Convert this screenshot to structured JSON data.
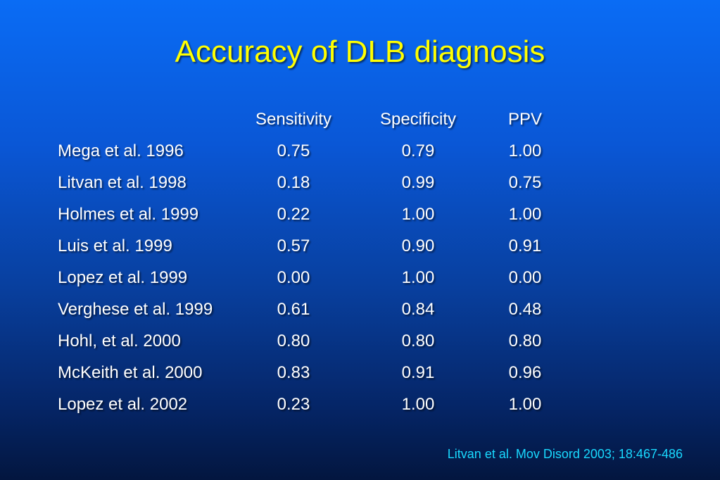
{
  "slide": {
    "title": "Accuracy of DLB diagnosis",
    "citation": "Litvan et al. Mov Disord 2003; 18:467-486"
  },
  "table": {
    "headers": [
      "Sensitivity",
      "Specificity",
      "PPV"
    ],
    "rows": [
      {
        "study": "Mega et al. 1996",
        "sensitivity": "0.75",
        "specificity": "0.79",
        "ppv": "1.00"
      },
      {
        "study": "Litvan et al. 1998",
        "sensitivity": "0.18",
        "specificity": "0.99",
        "ppv": "0.75"
      },
      {
        "study": "Holmes et al. 1999",
        "sensitivity": "0.22",
        "specificity": "1.00",
        "ppv": "1.00"
      },
      {
        "study": "Luis et al. 1999",
        "sensitivity": "0.57",
        "specificity": "0.90",
        "ppv": "0.91"
      },
      {
        "study": "Lopez et al. 1999",
        "sensitivity": "0.00",
        "specificity": "1.00",
        "ppv": "0.00"
      },
      {
        "study": "Verghese et al. 1999",
        "sensitivity": "0.61",
        "specificity": "0.84",
        "ppv": "0.48"
      },
      {
        "study": "Hohl, et al. 2000",
        "sensitivity": "0.80",
        "specificity": "0.80",
        "ppv": "0.80"
      },
      {
        "study": "McKeith et al. 2000",
        "sensitivity": "0.83",
        "specificity": "0.91",
        "ppv": "0.96"
      },
      {
        "study": "Lopez et al. 2002",
        "sensitivity": "0.23",
        "specificity": "1.00",
        "ppv": "1.00"
      }
    ]
  },
  "colors": {
    "title": "#ffff00",
    "text": "#ffffff",
    "citation": "#19d9ff",
    "background_top": "#0a6cf5",
    "background_bottom": "#03163f"
  }
}
